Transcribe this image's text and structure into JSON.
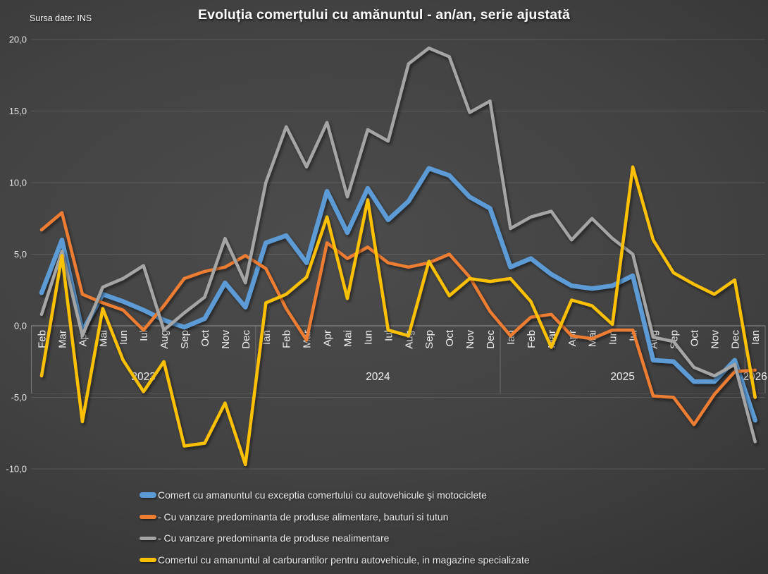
{
  "header": {
    "source": "Sursa date: INS",
    "title": "Evoluția comerțului cu amănuntul - an/an, serie ajustată"
  },
  "chart_data": {
    "type": "line",
    "title": "Evoluția comerțului cu amănuntul - an/an, serie ajustată",
    "source_note": "Sursa date: INS",
    "grid": true,
    "legend_position": "bottom-left",
    "y_axis": {
      "min": -10,
      "max": 20,
      "step": 5,
      "ticks": [
        {
          "label": "20,0",
          "value": 20
        },
        {
          "label": "15,0",
          "value": 15
        },
        {
          "label": "10,0",
          "value": 10
        },
        {
          "label": "5,0",
          "value": 5
        },
        {
          "label": "0,0",
          "value": 0
        },
        {
          "label": "-5,0",
          "value": -5
        },
        {
          "label": "-10,0",
          "value": -10
        }
      ]
    },
    "x": {
      "months": [
        "Feb",
        "Mar",
        "Apr",
        "Mai",
        "Iun",
        "Iul",
        "Aug",
        "Sep",
        "Oct",
        "Nov",
        "Dec",
        "Ian",
        "Feb",
        "Mar",
        "Apr",
        "Mai",
        "Iun",
        "Iul",
        "Aug",
        "Sep",
        "Oct",
        "Nov",
        "Dec",
        "Ian",
        "Feb",
        "Mar",
        "Apr",
        "Mai",
        "Iun",
        "Iul",
        "Aug",
        "Sep",
        "Oct",
        "Nov",
        "Dec",
        "Ian"
      ],
      "year_groups": [
        {
          "label": "2023",
          "from": 0,
          "to": 10
        },
        {
          "label": "2024",
          "from": 11,
          "to": 22
        },
        {
          "label": "2025",
          "from": 23,
          "to": 34
        },
        {
          "label": "2026",
          "from": 35,
          "to": 35
        }
      ]
    },
    "series": [
      {
        "name": "Comert cu amanuntul cu exceptia comertului cu autovehicule şi motociclete",
        "color": "#5B9BD5",
        "width": 6.5,
        "values": [
          2.3,
          6.0,
          -0.4,
          2.2,
          1.7,
          1.1,
          0.4,
          -0.1,
          0.5,
          3.0,
          1.3,
          5.8,
          6.3,
          4.4,
          9.4,
          6.5,
          9.6,
          7.4,
          8.7,
          11.0,
          10.5,
          9.0,
          8.2,
          4.1,
          4.7,
          3.6,
          2.8,
          2.6,
          2.8,
          3.5,
          -2.4,
          -2.5,
          -3.9,
          -3.9,
          -2.4,
          -6.6
        ]
      },
      {
        "name": "- Cu vanzare predominanta de produse alimentare, bauturi si tutun",
        "color": "#ED7D31",
        "width": 4.5,
        "values": [
          6.7,
          7.9,
          2.2,
          1.6,
          1.1,
          -0.3,
          1.4,
          3.3,
          3.8,
          4.1,
          4.9,
          4.0,
          1.2,
          -1.0,
          5.8,
          4.7,
          5.5,
          4.4,
          4.1,
          4.4,
          5.0,
          3.4,
          1.0,
          -0.7,
          0.6,
          0.8,
          -0.7,
          -0.9,
          -0.3,
          -0.3,
          -4.9,
          -5.0,
          -6.9,
          -4.8,
          -3.2,
          -3.1
        ]
      },
      {
        "name": "- Cu vanzare predominanta de produse nealimentare",
        "color": "#A5A5A5",
        "width": 4.5,
        "values": [
          0.8,
          5.2,
          -0.7,
          2.7,
          3.3,
          4.2,
          -0.3,
          0.9,
          2.0,
          6.1,
          3.0,
          10.0,
          13.9,
          11.1,
          14.2,
          9.0,
          13.7,
          12.9,
          18.3,
          19.4,
          18.8,
          14.9,
          15.7,
          6.8,
          7.6,
          8.0,
          6.0,
          7.5,
          6.1,
          5.0,
          -0.8,
          -1.1,
          -2.9,
          -3.5,
          -2.7,
          -8.1
        ]
      },
      {
        "name": "Comertul cu amanuntul al carburantilor pentru autovehicule, in magazine specializate",
        "color": "#FFC000",
        "width": 4.5,
        "values": [
          -3.5,
          4.9,
          -6.7,
          1.2,
          -2.4,
          -4.6,
          -2.5,
          -8.4,
          -8.2,
          -5.4,
          -9.7,
          1.6,
          2.2,
          3.4,
          7.6,
          1.9,
          8.8,
          -0.3,
          -0.7,
          4.5,
          2.1,
          3.3,
          3.1,
          3.3,
          1.7,
          -1.5,
          1.8,
          1.4,
          0.1,
          11.1,
          6.0,
          3.7,
          2.9,
          2.2,
          3.2,
          -5.0
        ]
      }
    ]
  }
}
